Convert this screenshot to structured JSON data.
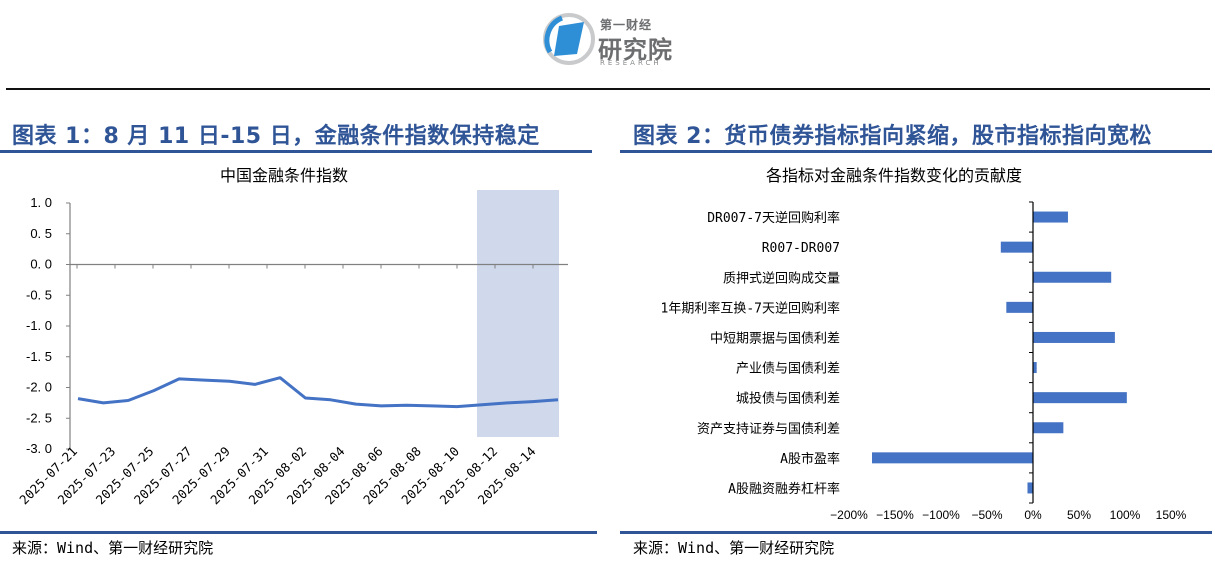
{
  "header": {
    "logo": {
      "name": "logo-yicai-research",
      "brand_top": "第一财经",
      "brand_main": "研究院",
      "brand_en": "RESEARCH"
    }
  },
  "figure1": {
    "title": "图表 1：8 月 11 日-15 日，金融条件指数保持稳定",
    "chart_title": "中国金融条件指数",
    "source": "来源：Wind、第一财经研究院"
  },
  "figure2": {
    "title": "图表 2：货币债券指标指向紧缩，股市指标指向宽松",
    "chart_title": "各指标对金融条件指数变化的贡献度",
    "source": "来源：Wind、第一财经研究院"
  },
  "colors": {
    "accent": "#2f5597",
    "series": "#4472c4",
    "highlight_band": "#cfd9eb"
  },
  "chart_data": [
    {
      "type": "line",
      "title": "中国金融条件指数",
      "xlabel": "",
      "ylabel": "",
      "ylim": [
        -3.0,
        1.0
      ],
      "yticks": [
        "1.0",
        "0.5",
        "0.0",
        "-0.5",
        "-1.0",
        "-1.5",
        "-2.0",
        "-2.5",
        "-3.0"
      ],
      "xtick_labels": [
        "2025-07-21",
        "2025-07-23",
        "2025-07-25",
        "2025-07-27",
        "2025-07-29",
        "2025-07-31",
        "2025-08-02",
        "2025-08-04",
        "2025-08-06",
        "2025-08-08",
        "2025-08-10",
        "2025-08-12",
        "2025-08-14"
      ],
      "grid": false,
      "highlight_range": [
        "2025-08-11",
        "2025-08-15"
      ],
      "series": [
        {
          "name": "中国金融条件指数",
          "x": [
            "2025-07-21",
            "2025-07-22",
            "2025-07-23",
            "2025-07-24",
            "2025-07-25",
            "2025-07-28",
            "2025-07-29",
            "2025-07-30",
            "2025-07-31",
            "2025-08-01",
            "2025-08-04",
            "2025-08-05",
            "2025-08-06",
            "2025-08-07",
            "2025-08-08",
            "2025-08-11",
            "2025-08-12",
            "2025-08-13",
            "2025-08-14",
            "2025-08-15"
          ],
          "values": [
            -2.18,
            -2.25,
            -2.21,
            -2.05,
            -1.86,
            -1.88,
            -1.9,
            -1.95,
            -1.84,
            -2.17,
            -2.2,
            -2.27,
            -2.3,
            -2.29,
            -2.3,
            -2.31,
            -2.28,
            -2.25,
            -2.23,
            -2.2
          ]
        }
      ]
    },
    {
      "type": "bar",
      "orientation": "horizontal",
      "title": "各指标对金融条件指数变化的贡献度",
      "xlabel": "",
      "ylabel": "",
      "xlim": [
        -200,
        150
      ],
      "xtick_labels": [
        "-200%",
        "-150%",
        "-100%",
        "-50%",
        "0%",
        "50%",
        "100%",
        "150%"
      ],
      "grid": false,
      "categories": [
        "DR007-7天逆回购利率",
        "R007-DR007",
        "质押式逆回购成交量",
        "1年期利率互换-7天逆回购利率",
        "中短期票据与国债利差",
        "产业债与国债利差",
        "城投债与国债利差",
        "资产支持证券与国债利差",
        "A股市盈率",
        "A股融资融券杠杆率"
      ],
      "values": [
        38,
        -35,
        85,
        -29,
        89,
        4,
        102,
        33,
        -175,
        -6
      ],
      "unit": "%"
    }
  ]
}
